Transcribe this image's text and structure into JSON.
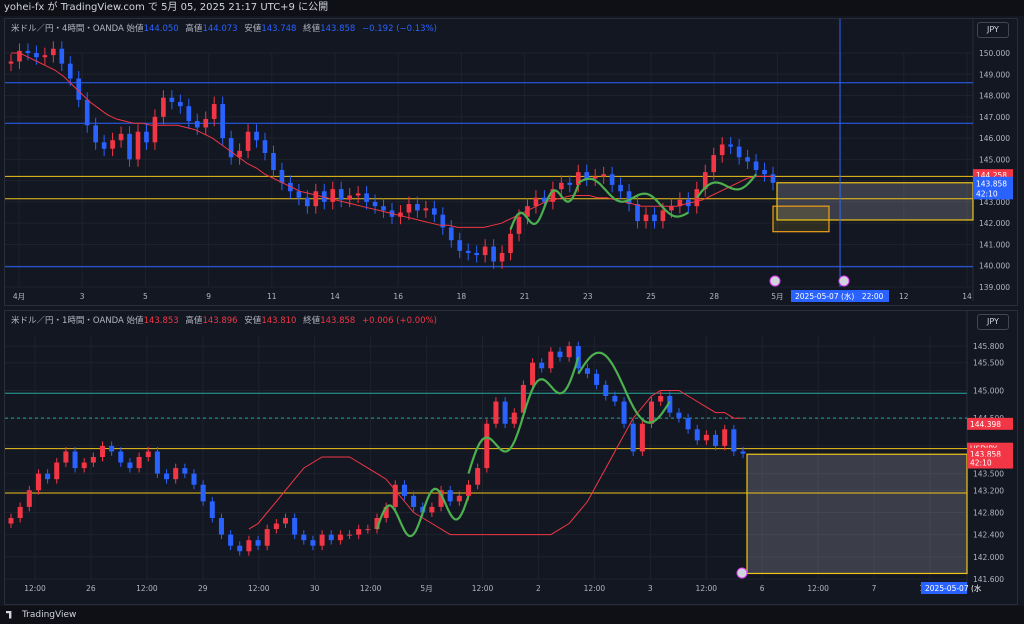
{
  "header": {
    "title": "yohei-fx が TradingView.com で 5月 05, 2025 21:17 UTC+9 に公開"
  },
  "footer": {
    "brand": "TradingView"
  },
  "colors": {
    "bg": "#131722",
    "grid": "#1e222d",
    "up": "#f23645",
    "down": "#2962ff",
    "ma": "#f23645",
    "wave": "#4caf50",
    "hline_blue": "#2962ff",
    "hline_yellow": "#f0c419",
    "hline_teal": "#26a69a",
    "box_fill": "rgba(178,181,190,0.25)",
    "box_border": "#f0c419",
    "price_tag": "#2962ff",
    "price_tag_red": "#f23645",
    "date_tag": "#2962ff"
  },
  "chart_data": [
    {
      "type": "candlestick",
      "symbol_line": {
        "name": "米ドル／円・4時間・OANDA",
        "o_label": "始値",
        "o": "144.050",
        "h_label": "高値",
        "h": "144.073",
        "l_label": "安値",
        "l": "143.748",
        "c_label": "終値",
        "c": "143.858",
        "chg": "−0.192 (−0.13%)"
      },
      "currency": "JPY",
      "ylim": [
        139.0,
        150.0
      ],
      "y_ticks": [
        "150.000",
        "149.000",
        "148.000",
        "147.000",
        "146.000",
        "145.000",
        "144.000",
        "143.000",
        "142.000",
        "141.000",
        "140.000",
        "139.000"
      ],
      "x_ticks": [
        "4月",
        "3",
        "5",
        "9",
        "11",
        "14",
        "16",
        "18",
        "21",
        "23",
        "25",
        "28",
        "5月",
        "3",
        "12",
        "14"
      ],
      "close_series": [
        149.6,
        150.1,
        150.0,
        149.8,
        149.9,
        150.2,
        149.5,
        148.8,
        147.8,
        146.6,
        145.8,
        145.5,
        145.9,
        146.2,
        145.0,
        146.3,
        145.8,
        147.0,
        147.9,
        147.7,
        147.5,
        146.8,
        146.5,
        146.9,
        147.6,
        146.0,
        145.1,
        145.4,
        146.3,
        145.9,
        145.3,
        144.5,
        143.9,
        143.5,
        143.2,
        142.8,
        143.5,
        143.0,
        143.6,
        143.1,
        143.3,
        143.4,
        143.0,
        142.8,
        142.6,
        142.3,
        142.5,
        142.9,
        142.6,
        142.7,
        142.4,
        141.8,
        141.2,
        140.7,
        140.6,
        140.5,
        140.9,
        140.2,
        140.6,
        141.5,
        142.3,
        142.8,
        143.2,
        143.0,
        143.6,
        143.9,
        143.8,
        144.4,
        144.1,
        144.2,
        144.3,
        143.8,
        143.5,
        142.9,
        142.1,
        142.4,
        142.1,
        142.6,
        142.8,
        143.1,
        142.8,
        143.6,
        144.4,
        145.2,
        145.7,
        145.6,
        145.1,
        144.9,
        144.5,
        144.3,
        143.9
      ],
      "ma_series": [
        150.0,
        150.0,
        149.8,
        149.6,
        149.4,
        149.2,
        148.9,
        148.5,
        148.1,
        147.7,
        147.4,
        147.1,
        146.9,
        146.8,
        146.7,
        146.7,
        146.6,
        146.6,
        146.6,
        146.6,
        146.5,
        146.4,
        146.2,
        146.0,
        145.7,
        145.4,
        145.1,
        144.8,
        144.6,
        144.3,
        144.1,
        143.9,
        143.7,
        143.5,
        143.4,
        143.3,
        143.2,
        143.1,
        143.0,
        142.9,
        142.8,
        142.7,
        142.6,
        142.5,
        142.4,
        142.3,
        142.2,
        142.1,
        142.0,
        141.9,
        141.9,
        141.8,
        141.8,
        141.8,
        141.8,
        141.9,
        142.0,
        142.2,
        142.4,
        142.6,
        142.8,
        143.0,
        143.1,
        143.2,
        143.3,
        143.3,
        143.3,
        143.2,
        143.2,
        143.1,
        143.0,
        142.9,
        142.8,
        142.8,
        142.8,
        142.8,
        142.8,
        142.9,
        143.0,
        143.1,
        143.3,
        143.5,
        143.7,
        143.9,
        144.1,
        144.2,
        144.2,
        144.2
      ],
      "hlines": [
        {
          "price": 148.6,
          "color": "blue"
        },
        {
          "price": 146.7,
          "color": "blue"
        },
        {
          "price": 144.2,
          "color": "yellow"
        },
        {
          "price": 143.15,
          "color": "yellow"
        },
        {
          "price": 139.95,
          "color": "blue"
        }
      ],
      "price_tags": [
        {
          "label": "144.258",
          "color": "red",
          "price": 144.258
        },
        {
          "label": "USDJPY",
          "color": "blue",
          "price": 143.9
        },
        {
          "label": "143.858",
          "color": "blue",
          "price": 143.858
        },
        {
          "label": "42:10",
          "color": "blue",
          "price": 143.4
        }
      ],
      "date_tag": "2025-05-07 (水)　22:00"
    },
    {
      "type": "candlestick",
      "symbol_line": {
        "name": "米ドル／円・1時間・OANDA",
        "o_label": "始値",
        "o": "143.853",
        "h_label": "高値",
        "h": "143.896",
        "l_label": "安値",
        "l": "143.810",
        "c_label": "終値",
        "c": "143.858",
        "chg": "+0.006 (+0.00%)"
      },
      "currency": "JPY",
      "ylim": [
        141.6,
        146.0
      ],
      "y_ticks": [
        "145.800",
        "145.500",
        "145.000",
        "144.500",
        "144.000",
        "143.500",
        "143.200",
        "142.800",
        "142.400",
        "142.000",
        "141.600"
      ],
      "x_ticks": [
        "12:00",
        "26",
        "12:00",
        "29",
        "12:00",
        "30",
        "12:00",
        "5月",
        "12:00",
        "2",
        "12:00",
        "3",
        "12:00",
        "6",
        "12:00",
        "7",
        "12:00"
      ],
      "close_series": [
        142.7,
        142.9,
        143.2,
        143.5,
        143.4,
        143.7,
        143.9,
        143.6,
        143.7,
        143.8,
        144.0,
        143.9,
        143.7,
        143.6,
        143.8,
        143.9,
        143.5,
        143.4,
        143.6,
        143.5,
        143.3,
        143.0,
        142.7,
        142.4,
        142.2,
        142.1,
        142.3,
        142.2,
        142.5,
        142.6,
        142.7,
        142.4,
        142.3,
        142.2,
        142.4,
        142.3,
        142.4,
        142.4,
        142.5,
        142.5,
        142.7,
        142.9,
        143.3,
        143.1,
        142.9,
        142.8,
        142.9,
        143.2,
        143.0,
        143.1,
        143.3,
        143.6,
        144.4,
        144.8,
        144.4,
        144.6,
        145.1,
        145.5,
        145.4,
        145.7,
        145.6,
        145.8,
        145.4,
        145.3,
        145.1,
        144.9,
        144.8,
        144.4,
        143.9,
        144.4,
        144.8,
        144.9,
        144.6,
        144.5,
        144.3,
        144.1,
        144.2,
        144.0,
        144.3,
        143.9,
        143.86
      ],
      "ma_series": [
        142.5,
        142.6,
        142.8,
        143.0,
        143.2,
        143.4,
        143.6,
        143.7,
        143.8,
        143.8,
        143.8,
        143.8,
        143.7,
        143.6,
        143.5,
        143.4,
        143.2,
        143.0,
        142.8,
        142.7,
        142.6,
        142.5,
        142.4,
        142.4,
        142.4,
        142.4,
        142.4,
        142.4,
        142.4,
        142.4,
        142.4,
        142.4,
        142.4,
        142.4,
        142.5,
        142.6,
        142.8,
        143.0,
        143.3,
        143.6,
        143.9,
        144.2,
        144.5,
        144.7,
        144.9,
        145.0,
        145.0,
        145.0,
        144.9,
        144.8,
        144.7,
        144.6,
        144.6,
        144.5,
        144.5
      ],
      "ma_start_index": 26,
      "hlines": [
        {
          "price": 144.95,
          "color": "teal"
        },
        {
          "price": 144.5,
          "color": "teal_dash"
        },
        {
          "price": 143.95,
          "color": "yellow"
        },
        {
          "price": 143.15,
          "color": "yellow"
        }
      ],
      "price_tags": [
        {
          "label": "144.398",
          "color": "red",
          "price": 144.398
        },
        {
          "label": "USDJPY",
          "color": "red",
          "price": 143.95
        },
        {
          "label": "143.858",
          "color": "red",
          "price": 143.858
        },
        {
          "label": "42:10",
          "color": "red",
          "price": 143.7
        }
      ],
      "date_tag": "2025-05-07 (水"
    }
  ]
}
